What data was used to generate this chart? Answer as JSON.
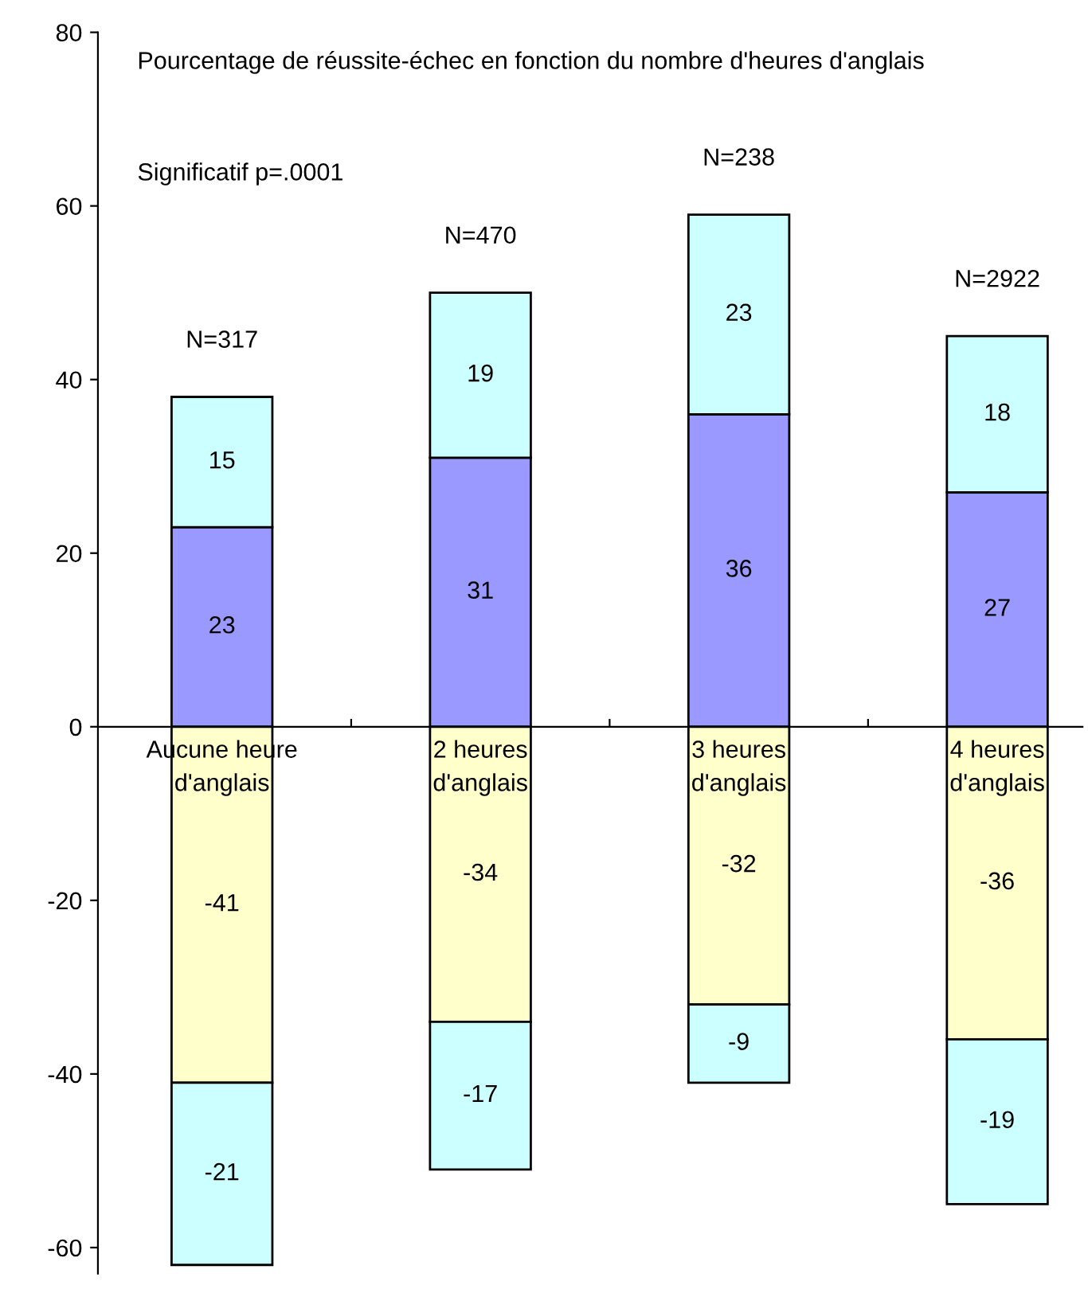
{
  "chart_data": {
    "type": "bar",
    "stacked": true,
    "title": "Pourcentage de réussite-échec en fonction du nombre d'heures d'anglais",
    "categories": [
      "Aucune heure\nd'anglais",
      "2 heures\nd'anglais",
      "3 heures\nd'anglais",
      "4 heures\nd'anglais"
    ],
    "series": [
      {
        "color": "#9999ff",
        "values": [
          23,
          31,
          36,
          27
        ]
      },
      {
        "color": "#ccffff",
        "values": [
          15,
          19,
          23,
          18
        ]
      },
      {
        "color": "#ffffcc",
        "values": [
          -41,
          -34,
          -32,
          -36
        ]
      },
      {
        "color": "#ccffff",
        "values": [
          -21,
          -17,
          -9,
          -19
        ]
      }
    ],
    "data_labels": true,
    "ylim": [
      -63,
      80
    ],
    "yticks": [
      -60,
      -40,
      -20,
      0,
      20,
      40,
      60,
      80
    ],
    "legend": false,
    "annotations": [
      "Significatif p=.0001",
      {
        "text": "N=317",
        "x": "Aucune heure\nd'anglais",
        "y": 38
      },
      {
        "text": "N=470",
        "x": "2 heures\nd'anglais",
        "y": 50
      },
      {
        "text": "N=238",
        "x": "3 heures\nd'anglais",
        "y": 59
      },
      {
        "text": "N=2922",
        "x": "4 heures\nd'anglais",
        "y": 45
      }
    ]
  }
}
